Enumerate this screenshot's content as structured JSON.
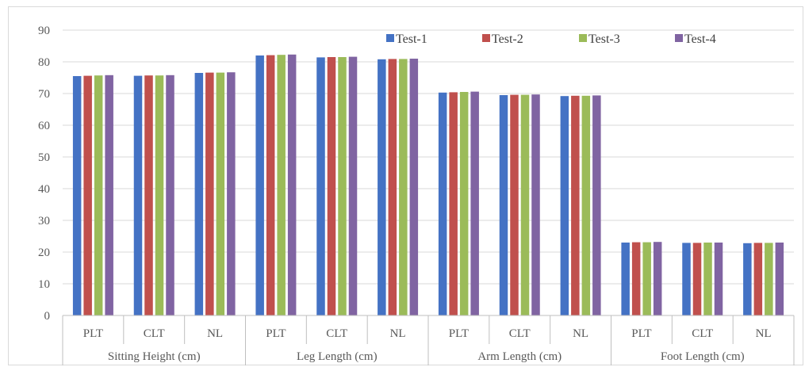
{
  "chart_data": {
    "type": "bar",
    "title": "",
    "xlabel": "",
    "ylabel": "",
    "ylim": [
      0,
      90
    ],
    "yticks": [
      0,
      10,
      20,
      30,
      40,
      50,
      60,
      70,
      80,
      90
    ],
    "grid": true,
    "legend_position": "top-right",
    "groups": [
      {
        "label": "Sitting Height (cm)",
        "categories": [
          "PLT",
          "CLT",
          "NL"
        ]
      },
      {
        "label": "Leg Length (cm)",
        "categories": [
          "PLT",
          "CLT",
          "NL"
        ]
      },
      {
        "label": "Arm Length (cm)",
        "categories": [
          "PLT",
          "CLT",
          "NL"
        ]
      },
      {
        "label": "Foot Length (cm)",
        "categories": [
          "PLT",
          "CLT",
          "NL"
        ]
      }
    ],
    "series": [
      {
        "name": "Test-1",
        "color": "#4472c4",
        "values": [
          75.5,
          75.6,
          76.5,
          82.0,
          81.4,
          80.8,
          70.3,
          69.5,
          69.2,
          23.0,
          22.9,
          22.8
        ]
      },
      {
        "name": "Test-2",
        "color": "#c0504d",
        "values": [
          75.6,
          75.7,
          76.6,
          82.1,
          81.5,
          80.9,
          70.4,
          69.6,
          69.3,
          23.1,
          22.9,
          22.9
        ]
      },
      {
        "name": "Test-3",
        "color": "#9bbb59",
        "values": [
          75.7,
          75.7,
          76.6,
          82.2,
          81.5,
          80.9,
          70.5,
          69.6,
          69.3,
          23.1,
          23.0,
          22.9
        ]
      },
      {
        "name": "Test-4",
        "color": "#8064a2",
        "values": [
          75.8,
          75.8,
          76.7,
          82.3,
          81.6,
          81.0,
          70.6,
          69.7,
          69.4,
          23.2,
          23.0,
          23.0
        ]
      }
    ]
  }
}
